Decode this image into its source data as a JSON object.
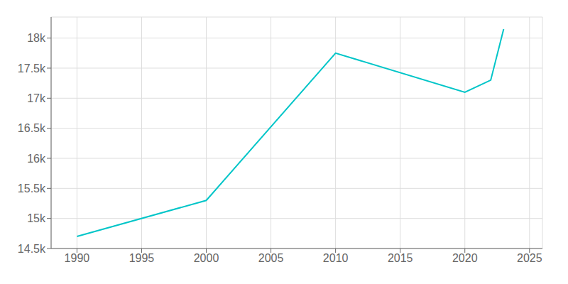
{
  "chart_data": {
    "type": "line",
    "x": [
      1990,
      2000,
      2010,
      2020,
      2022,
      2023
    ],
    "values": [
      14700,
      15300,
      17750,
      17100,
      17300,
      18150
    ],
    "color": "#00c5c8",
    "xlim": [
      1988,
      2026
    ],
    "ylim": [
      14500,
      18350
    ],
    "xticks": [
      1990,
      1995,
      2000,
      2005,
      2010,
      2015,
      2020,
      2025
    ],
    "yticks": [
      {
        "value": 14500,
        "label": "14.5k"
      },
      {
        "value": 15000,
        "label": "15k"
      },
      {
        "value": 15500,
        "label": "15.5k"
      },
      {
        "value": 16000,
        "label": "16k"
      },
      {
        "value": 16500,
        "label": "16.5k"
      },
      {
        "value": 17000,
        "label": "17k"
      },
      {
        "value": 17500,
        "label": "17.5k"
      },
      {
        "value": 18000,
        "label": "18k"
      }
    ],
    "grid": true
  }
}
